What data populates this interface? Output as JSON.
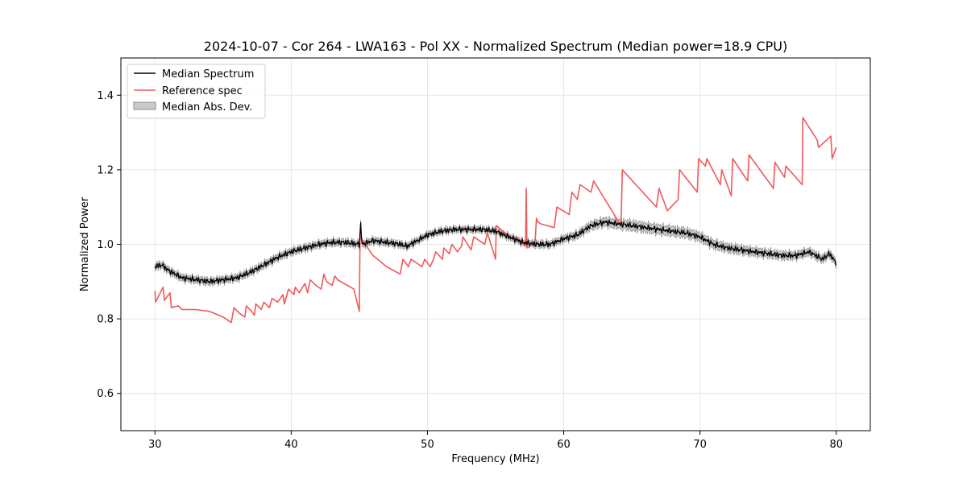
{
  "chart_data": {
    "type": "line",
    "title": "2024-10-07 - Cor 264 - LWA163 - Pol XX - Normalized Spectrum (Median power=18.9 CPU)",
    "xlabel": "Frequency (MHz)",
    "ylabel": "Normalized Power",
    "xlim": [
      27.5,
      82.5
    ],
    "ylim": [
      0.5,
      1.5
    ],
    "xticks": [
      30,
      40,
      50,
      60,
      70,
      80
    ],
    "yticks": [
      0.6,
      0.8,
      1.0,
      1.2,
      1.4
    ],
    "xtick_labels": [
      "30",
      "40",
      "50",
      "60",
      "70",
      "80"
    ],
    "ytick_labels": [
      "0.6",
      "0.8",
      "1.0",
      "1.2",
      "1.4"
    ],
    "grid": true,
    "legend_position": "upper-left",
    "legend": {
      "median": "Median Spectrum",
      "reference": "Reference spec",
      "mad": "Median Abs. Dev."
    },
    "colors": {
      "median": "#000000",
      "reference": "#f05a5a",
      "mad_fill": "#b4b4b4",
      "mad_edge": "#8c8c8c",
      "grid": "#e6e6e6"
    },
    "series": [
      {
        "name": "Median Spectrum",
        "x": [
          30,
          30.5,
          31,
          32,
          33,
          34,
          35,
          36,
          37,
          38,
          39,
          40,
          41,
          42,
          43,
          44,
          45,
          45.1,
          45.2,
          46,
          47,
          48,
          48.5,
          49,
          50,
          51,
          52,
          53,
          54,
          55,
          56,
          57,
          58,
          59,
          60,
          61,
          62,
          63,
          64,
          65,
          66,
          67,
          68,
          69,
          70,
          71,
          72,
          73,
          74,
          75,
          76,
          77,
          78,
          79,
          79.5,
          80
        ],
        "y": [
          0.94,
          0.945,
          0.93,
          0.91,
          0.905,
          0.9,
          0.905,
          0.91,
          0.925,
          0.945,
          0.965,
          0.98,
          0.99,
          1.0,
          1.005,
          1.005,
          1.0,
          1.055,
          1.0,
          1.01,
          1.005,
          1.0,
          0.995,
          1.005,
          1.025,
          1.035,
          1.04,
          1.04,
          1.04,
          1.035,
          1.02,
          1.005,
          1.0,
          1.0,
          1.015,
          1.025,
          1.05,
          1.06,
          1.055,
          1.05,
          1.045,
          1.04,
          1.035,
          1.03,
          1.02,
          1.0,
          0.99,
          0.985,
          0.98,
          0.975,
          0.97,
          0.97,
          0.98,
          0.96,
          0.975,
          0.95
        ]
      },
      {
        "name": "Median Abs. Dev.",
        "x": [
          30,
          35,
          40,
          45,
          50,
          55,
          60,
          62,
          65,
          68,
          70,
          75,
          80
        ],
        "y": [
          0.008,
          0.008,
          0.008,
          0.008,
          0.007,
          0.007,
          0.008,
          0.01,
          0.012,
          0.012,
          0.011,
          0.01,
          0.009
        ]
      },
      {
        "name": "Reference spec",
        "x": [
          30,
          30.05,
          30.6,
          30.7,
          31.1,
          31.2,
          31.7,
          32,
          33,
          34,
          35,
          35.6,
          35.8,
          36.2,
          36.6,
          36.7,
          37.1,
          37.3,
          37.4,
          37.8,
          38,
          38.4,
          38.6,
          39,
          39.4,
          39.5,
          39.8,
          40.2,
          40.3,
          40.6,
          41,
          41.2,
          41.4,
          41.8,
          42.2,
          42.4,
          42.6,
          43,
          43.2,
          43.4,
          44.6,
          45,
          45.05,
          46,
          47,
          48,
          48.2,
          48.6,
          48.8,
          49.6,
          49.8,
          50.2,
          50.5,
          50.6,
          51.1,
          51.2,
          51.6,
          51.8,
          52.2,
          52.5,
          52.6,
          53.2,
          53.4,
          54.2,
          54.4,
          55,
          55.05,
          56.4,
          56.5,
          57.2,
          57.25,
          57.3,
          57.9,
          58,
          58.1,
          58.3,
          59.3,
          59.5,
          60.4,
          60.6,
          61,
          61.2,
          62,
          62.2,
          64.2,
          64.3,
          66.8,
          67,
          67.5,
          67.6,
          68.4,
          68.5,
          69.8,
          69.9,
          70.4,
          70.5,
          71.5,
          71.6,
          72.3,
          72.4,
          73.5,
          73.6,
          75.4,
          75.5,
          76.2,
          76.3,
          77.5,
          77.55,
          78.6,
          78.7,
          79.6,
          79.7,
          80
        ],
        "y": [
          0.875,
          0.845,
          0.885,
          0.85,
          0.87,
          0.83,
          0.835,
          0.825,
          0.825,
          0.82,
          0.805,
          0.79,
          0.83,
          0.815,
          0.805,
          0.835,
          0.82,
          0.81,
          0.84,
          0.825,
          0.845,
          0.83,
          0.855,
          0.845,
          0.865,
          0.84,
          0.88,
          0.865,
          0.885,
          0.87,
          0.895,
          0.87,
          0.905,
          0.89,
          0.88,
          0.92,
          0.9,
          0.89,
          0.915,
          0.905,
          0.88,
          0.82,
          1.02,
          0.97,
          0.94,
          0.92,
          0.96,
          0.94,
          0.96,
          0.94,
          0.96,
          0.94,
          0.965,
          0.98,
          0.96,
          0.99,
          0.975,
          1.0,
          0.98,
          0.995,
          1.02,
          0.985,
          1.02,
          1.0,
          1.03,
          0.96,
          1.05,
          1.01,
          1.02,
          0.995,
          1.15,
          0.99,
          1.005,
          1.07,
          1.06,
          1.055,
          1.045,
          1.1,
          1.08,
          1.14,
          1.12,
          1.16,
          1.14,
          1.17,
          1.05,
          1.2,
          1.1,
          1.15,
          1.1,
          1.09,
          1.12,
          1.2,
          1.14,
          1.23,
          1.21,
          1.23,
          1.16,
          1.2,
          1.13,
          1.23,
          1.17,
          1.24,
          1.15,
          1.22,
          1.18,
          1.21,
          1.16,
          1.34,
          1.28,
          1.26,
          1.29,
          1.23,
          1.26
        ]
      }
    ]
  }
}
